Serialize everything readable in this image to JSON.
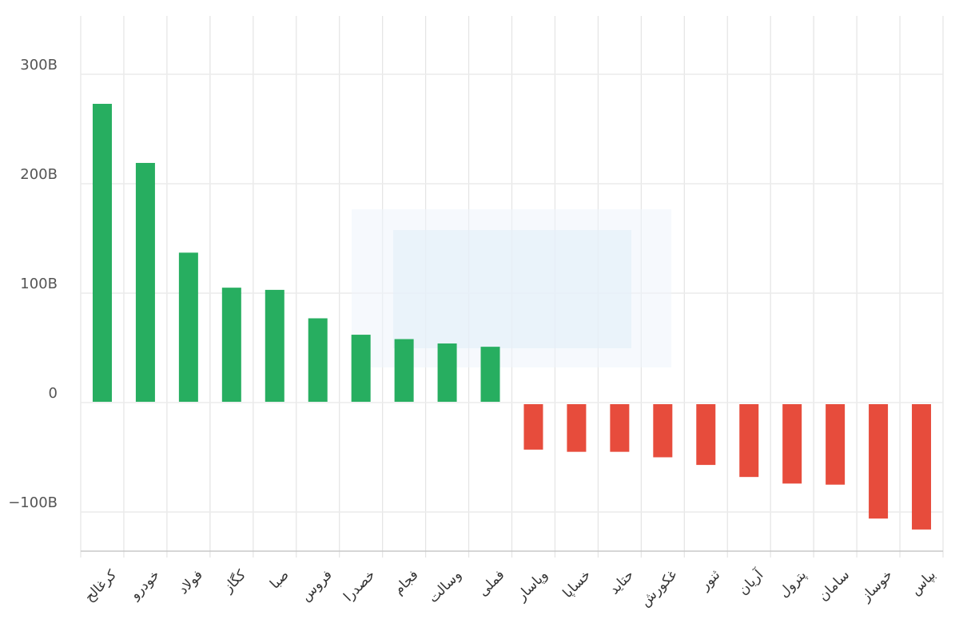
{
  "chart_data": {
    "type": "bar",
    "title": "",
    "xlabel": "",
    "ylabel": "",
    "ylim": [
      -135,
      355
    ],
    "yticks": [
      -100,
      0,
      100,
      200,
      300
    ],
    "ytick_labels": [
      "−100B",
      "0",
      "100B",
      "200B",
      "300B"
    ],
    "grid": true,
    "colors": {
      "positive": "#27ae60",
      "negative": "#e74c3c"
    },
    "categories": [
      "کرغالح",
      "خودرو",
      "فولاد",
      "کگاز",
      "صبا",
      "فروس",
      "خصدرا",
      "فجام",
      "وسالت",
      "فملی",
      "وپاسار",
      "خساپا",
      "حتاید",
      "غکورش",
      "ثنور",
      "آریان",
      "پترول",
      "سامان",
      "خوساز",
      "بپاس"
    ],
    "values": [
      273,
      219,
      137,
      105,
      103,
      77,
      62,
      58,
      54,
      51,
      -43,
      -45,
      -45,
      -50,
      -57,
      -68,
      -74,
      -75,
      -106,
      -116
    ]
  }
}
